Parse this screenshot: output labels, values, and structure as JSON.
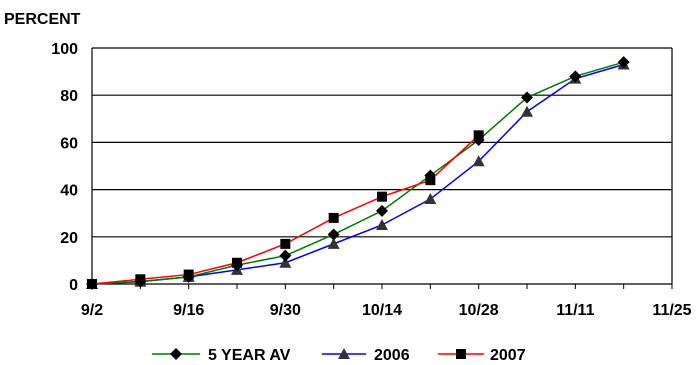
{
  "chart_data": {
    "type": "line",
    "title": "",
    "ylabel": "PERCENT",
    "xlabel": "",
    "x_tick_labels": [
      "9/2",
      "9/16",
      "9/30",
      "10/14",
      "10/28",
      "11/11",
      "11/25"
    ],
    "y_tick_labels": [
      "0",
      "20",
      "40",
      "60",
      "80",
      "100"
    ],
    "ylim": [
      0,
      100
    ],
    "x": [
      "9/2",
      "9/9",
      "9/16",
      "9/23",
      "9/30",
      "10/7",
      "10/14",
      "10/21",
      "10/28",
      "11/4",
      "11/11",
      "11/18"
    ],
    "grid": "horizontal",
    "legend_position": "bottom",
    "series": [
      {
        "name": "5 YEAR AV",
        "color": "#007a00",
        "marker": "diamond",
        "values": [
          0,
          1,
          3,
          8,
          12,
          21,
          31,
          46,
          61,
          79,
          88,
          94
        ]
      },
      {
        "name": "2006",
        "color": "#0000ff",
        "marker": "triangle",
        "values": [
          0,
          1,
          3,
          6,
          9,
          17,
          25,
          36,
          52,
          73,
          87,
          93
        ]
      },
      {
        "name": "2007",
        "color": "#ff0000",
        "marker": "square",
        "values": [
          0,
          2,
          4,
          9,
          17,
          28,
          37,
          44,
          63,
          null,
          null,
          null
        ]
      }
    ]
  }
}
